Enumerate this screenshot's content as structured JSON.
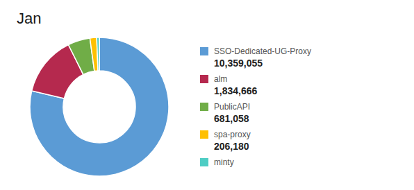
{
  "chart_data": {
    "type": "pie",
    "title": "Jan",
    "categories": [
      "SSO-Dedicated-UG-Proxy",
      "alm",
      "PublicAPI",
      "spa-proxy",
      "minty"
    ],
    "values": [
      10359055,
      1834666,
      681058,
      206180,
      80000
    ],
    "value_labels": [
      "10,359,055",
      "1,834,666",
      "681,058",
      "206,180",
      null
    ],
    "colors": [
      "#5b9bd5",
      "#b5294e",
      "#70ad47",
      "#ffc000",
      "#4ecdc4"
    ],
    "legend": "right"
  }
}
